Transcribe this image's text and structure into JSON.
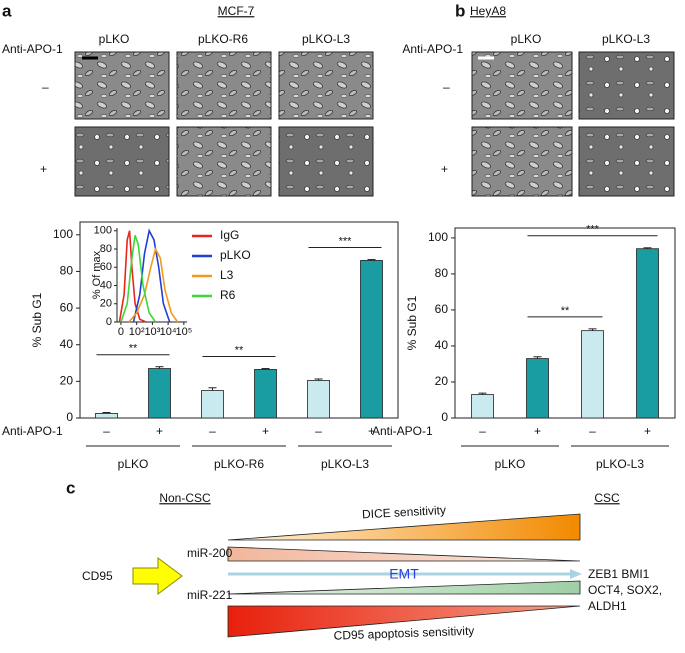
{
  "panel_labels": [
    "a",
    "b",
    "c"
  ],
  "panel_a": {
    "title": "MCF-7",
    "row_label": "Anti-APO-1",
    "columns": [
      "pLKO",
      "pLKO-R6",
      "pLKO-L3"
    ],
    "rows": [
      "–",
      "+"
    ]
  },
  "panel_b": {
    "title": "HeyA8",
    "row_label": "Anti-APO-1",
    "columns": [
      "pLKO",
      "pLKO-L3"
    ],
    "rows": [
      "–",
      "+"
    ]
  },
  "chart_data": [
    {
      "type": "bar",
      "ylabel": "% Sub G1",
      "row_label": "Anti-APO-1",
      "categories": [
        "–",
        "+",
        "–",
        "+",
        "–",
        "+"
      ],
      "groups": [
        "pLKO",
        "pLKO-R6",
        "pLKO-L3"
      ],
      "values": [
        2.5,
        27,
        15,
        26.5,
        20.5,
        86
      ],
      "errors": [
        0.5,
        1,
        1.5,
        0.5,
        0.8,
        0.5
      ],
      "colors": [
        "#c9eaee",
        "#1a9ca3",
        "#c9eaee",
        "#1a9ca3",
        "#c9eaee",
        "#1a9ca3"
      ],
      "ylim": [
        0,
        107
      ],
      "yticks": [
        0,
        20,
        40,
        60,
        80,
        100
      ],
      "significance": [
        {
          "label": "**",
          "between": [
            0,
            1
          ]
        },
        {
          "label": "**",
          "between": [
            2,
            3
          ]
        },
        {
          "label": "***",
          "between": [
            4,
            5
          ]
        }
      ]
    },
    {
      "type": "bar",
      "ylabel": "% Sub G1",
      "row_label": "Anti-APO-1",
      "categories": [
        "–",
        "+",
        "–",
        "+"
      ],
      "groups": [
        "pLKO",
        "pLKO-L3"
      ],
      "values": [
        13,
        33,
        48.5,
        94
      ],
      "errors": [
        0.8,
        1,
        1,
        0.5
      ],
      "colors": [
        "#c9eaee",
        "#1a9ca3",
        "#c9eaee",
        "#1a9ca3"
      ],
      "ylim": [
        0,
        105.5
      ],
      "yticks": [
        0,
        20,
        40,
        60,
        80,
        100
      ],
      "significance": [
        {
          "label": "**",
          "between": [
            1,
            2
          ]
        },
        {
          "label": "***",
          "between": [
            1,
            3
          ]
        }
      ]
    },
    {
      "type": "line",
      "ylabel": "% Of max",
      "xlim": [
        0.75,
        5.2
      ],
      "ylim": [
        0,
        103
      ],
      "xticks": [
        {
          "value": 1,
          "label": "0"
        },
        {
          "value": 2,
          "label": "10²"
        },
        {
          "value": 3,
          "label": "10³"
        },
        {
          "value": 4,
          "label": "10⁴"
        },
        {
          "value": 5,
          "label": "10⁵"
        }
      ],
      "yticks": [
        0,
        20,
        40,
        60,
        80,
        100
      ],
      "series": [
        {
          "name": "IgG",
          "color": "#e8261c",
          "x": [
            0.9,
            1.2,
            1.4,
            1.55,
            1.7,
            1.9,
            2.2,
            2.6
          ],
          "values": [
            0,
            30,
            90,
            100,
            60,
            20,
            3,
            0
          ]
        },
        {
          "name": "pLKO",
          "color": "#1f3fd6",
          "x": [
            1.8,
            2.2,
            2.5,
            2.8,
            3.1,
            3.4,
            3.7,
            4.1
          ],
          "values": [
            0,
            30,
            75,
            100,
            90,
            60,
            20,
            0
          ]
        },
        {
          "name": "L3",
          "color": "#f39a1d",
          "x": [
            1.5,
            2.0,
            2.5,
            2.9,
            3.2,
            3.5,
            3.8,
            4.2,
            4.6
          ],
          "values": [
            0,
            10,
            30,
            60,
            80,
            70,
            35,
            10,
            0
          ]
        },
        {
          "name": "R6",
          "color": "#3ed63a",
          "x": [
            1.0,
            1.4,
            1.7,
            1.9,
            2.1,
            2.4,
            2.8,
            3.2
          ],
          "values": [
            0,
            20,
            70,
            95,
            85,
            40,
            10,
            0
          ]
        }
      ]
    }
  ],
  "diagram": {
    "left_label": "Non-CSC",
    "right_label": "CSC",
    "dice": "DICE sensitivity",
    "cd95": "CD95",
    "mir200": "miR-200",
    "mir221": "miR-221",
    "emt": "EMT",
    "markers": [
      "ZEB1 BMI1",
      "OCT4, SOX2,",
      "ALDH1"
    ],
    "apoptosis": "CD95 apoptosis sensitivity"
  }
}
